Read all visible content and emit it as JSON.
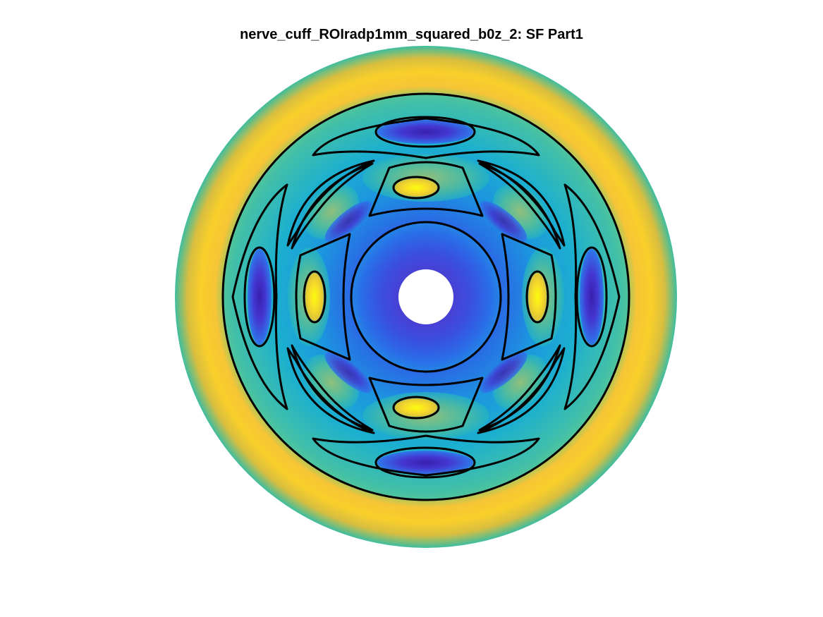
{
  "chart_data": {
    "type": "heatmap",
    "title": "nerve_cuff_ROIradp1mm_squared_b0z_2: SF Part1",
    "subtitle": "",
    "xlabel": "",
    "ylabel": "",
    "axes_visible": false,
    "grid": false,
    "legend": "none",
    "domain": "annulus",
    "colormap": "parula",
    "colormap_stops": [
      "#3e26a8",
      "#2c55e8",
      "#1590e0",
      "#1bb3c8",
      "#4cc49a",
      "#9ec869",
      "#e0b93b",
      "#fbd226",
      "#f9fb0e"
    ],
    "contour_color": "#000000",
    "hole_color": "#ffffff",
    "regions": [
      {
        "name": "outer-band",
        "level": "high",
        "color": "#f4c534"
      },
      {
        "name": "outer-rim",
        "level": "mid",
        "color": "#3fbf9e"
      },
      {
        "name": "middle-ring",
        "level": "low",
        "color": "#1c8fe3"
      },
      {
        "name": "inner-disc",
        "level": "lowest",
        "color": "#3a3ad0"
      },
      {
        "name": "mid-lobes-top-bottom",
        "level": "lowest",
        "color": "#3b2fc4"
      },
      {
        "name": "mid-lobes-left-right",
        "level": "lowest",
        "color": "#3b2fc4"
      },
      {
        "name": "inner-lobes",
        "level": "highest",
        "color": "#fde725"
      }
    ]
  }
}
